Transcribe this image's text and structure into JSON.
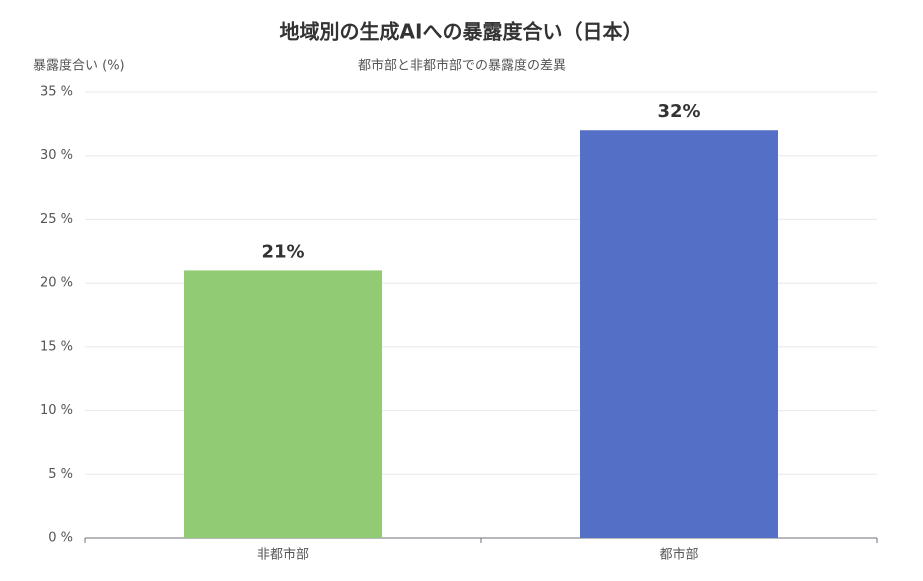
{
  "chart_data": {
    "type": "bar",
    "title": "地域別の生成AIへの暴露度合い（日本）",
    "subtitle": "都市部と非都市部での暴露度の差異",
    "y_label": "暴露度合い (%)",
    "categories": [
      "非都市部",
      "都市部"
    ],
    "values": [
      21,
      32
    ],
    "value_labels": [
      "21%",
      "32%"
    ],
    "colors": [
      "#91cc75",
      "#5470c6"
    ],
    "ylim": [
      0,
      35
    ],
    "yticks": [
      {
        "value": 0,
        "label": "0 %"
      },
      {
        "value": 5,
        "label": "5 %"
      },
      {
        "value": 10,
        "label": "10 %"
      },
      {
        "value": 15,
        "label": "15 %"
      },
      {
        "value": 20,
        "label": "20 %"
      },
      {
        "value": 25,
        "label": "25 %"
      },
      {
        "value": 30,
        "label": "30 %"
      },
      {
        "value": 35,
        "label": "35 %"
      }
    ],
    "grid": true
  }
}
